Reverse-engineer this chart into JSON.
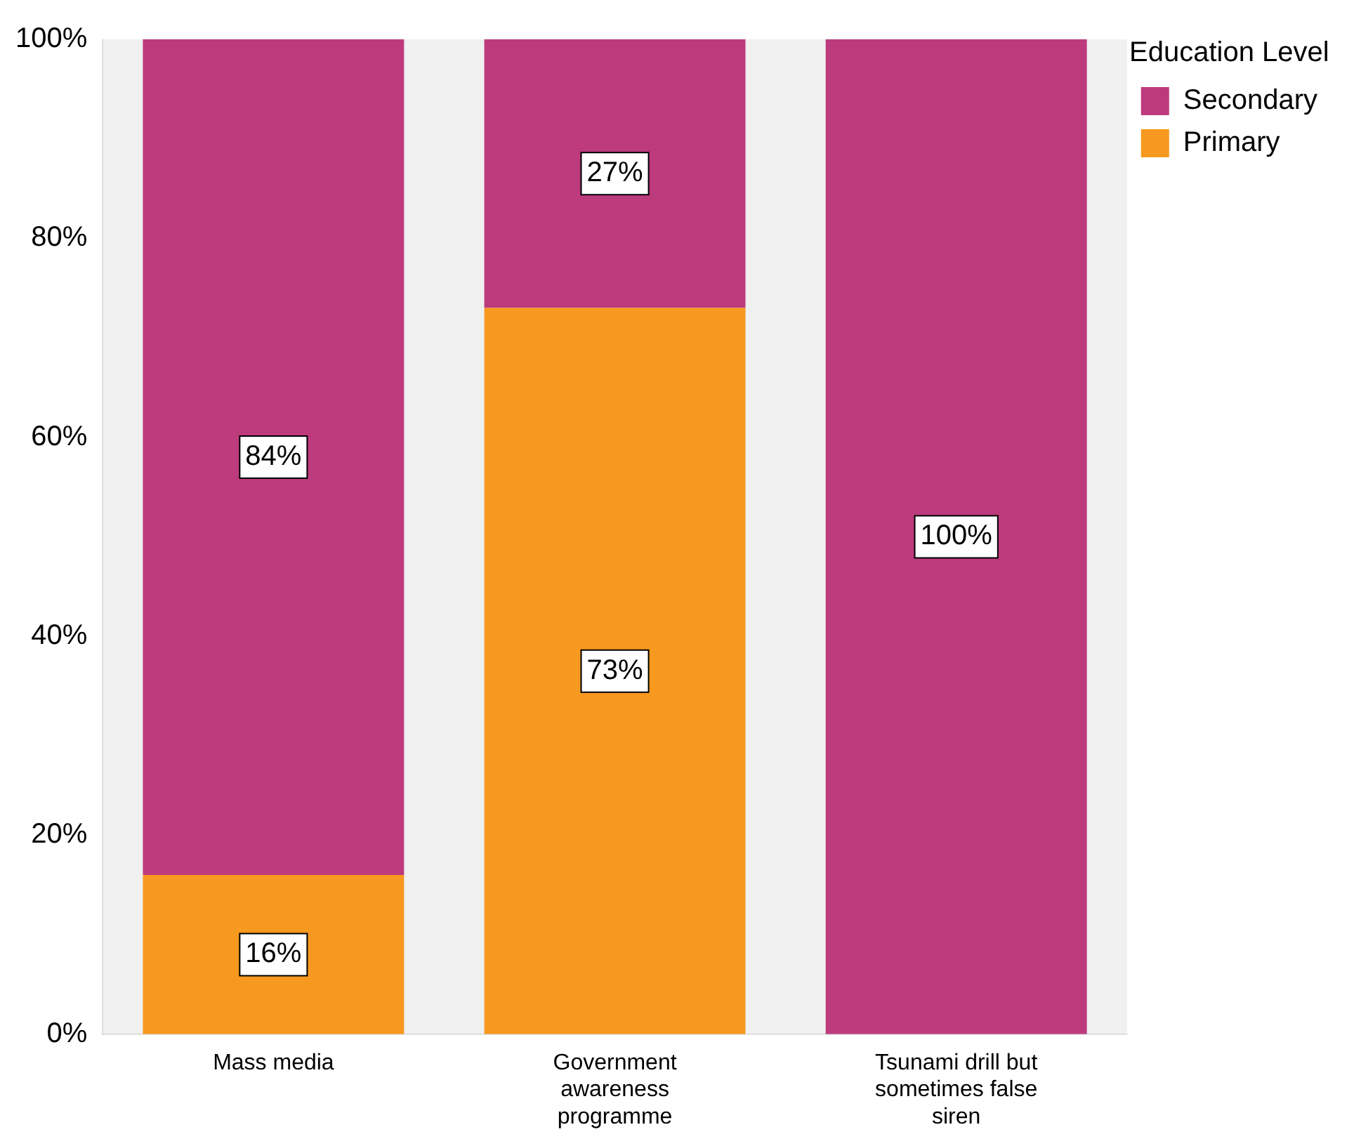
{
  "chart_data": {
    "type": "bar",
    "stacked": true,
    "legend": "right",
    "legend_title": "Education Level",
    "categories": [
      "Mass media",
      "Government awareness programme",
      "Tsunami drill but sometimes false siren"
    ],
    "series": [
      {
        "name": "Primary",
        "color": "#f7991f",
        "values": [
          16,
          73,
          0
        ],
        "value_labels": [
          "16%",
          "73%",
          null
        ]
      },
      {
        "name": "Secondary",
        "color": "#bd3a7d",
        "values": [
          84,
          27,
          100
        ],
        "value_labels": [
          "84%",
          "27%",
          "100%"
        ]
      }
    ],
    "ylim": [
      0,
      100
    ],
    "yticks": [
      {
        "value": 0,
        "label": "0%"
      },
      {
        "value": 20,
        "label": "20%"
      },
      {
        "value": 40,
        "label": "40%"
      },
      {
        "value": 60,
        "label": "60%"
      },
      {
        "value": 80,
        "label": "80%"
      },
      {
        "value": 100,
        "label": "100%"
      }
    ],
    "grid": false
  }
}
